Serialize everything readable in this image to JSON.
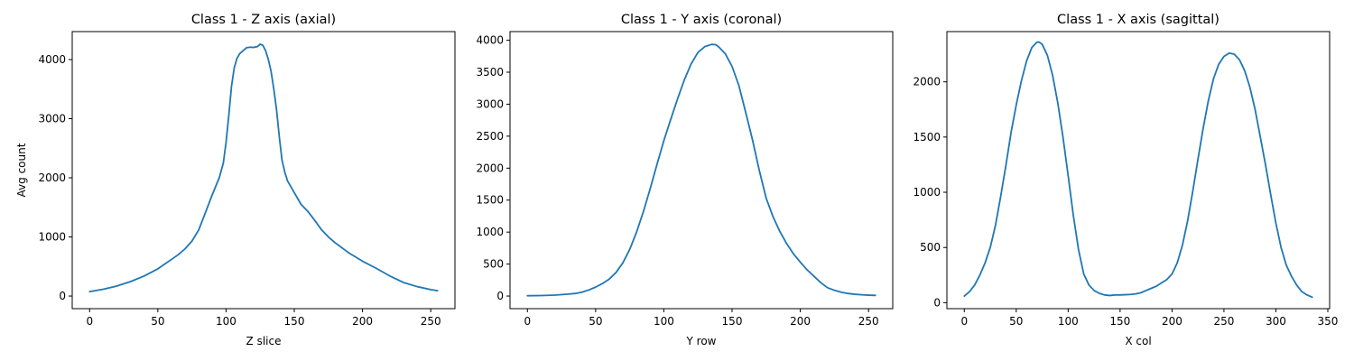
{
  "chart_data": [
    {
      "type": "line",
      "title": "Class 1 - Z axis (axial)",
      "xlabel": "Z slice",
      "ylabel": "Avg count",
      "xlim": [
        -12.75,
        267.75
      ],
      "ylim": [
        -213,
        4473
      ],
      "xticks": [
        0,
        50,
        100,
        150,
        200,
        250
      ],
      "yticks": [
        0,
        1000,
        2000,
        3000,
        4000
      ],
      "grid": false,
      "color": "#1f77b4",
      "series": [
        {
          "x": [
            0,
            10,
            20,
            30,
            40,
            50,
            55,
            60,
            65,
            70,
            75,
            80,
            85,
            90,
            95,
            98,
            100,
            102,
            104,
            106,
            108,
            110,
            112,
            115,
            118,
            120,
            123,
            125,
            127,
            129,
            131,
            133,
            135,
            137,
            139,
            141,
            143,
            145,
            150,
            155,
            160,
            165,
            170,
            175,
            180,
            190,
            200,
            210,
            220,
            230,
            240,
            250,
            255
          ],
          "y": [
            75,
            115,
            170,
            245,
            340,
            460,
            540,
            620,
            700,
            800,
            930,
            1120,
            1420,
            1720,
            2000,
            2250,
            2600,
            3050,
            3550,
            3860,
            4020,
            4100,
            4140,
            4200,
            4210,
            4205,
            4220,
            4260,
            4240,
            4150,
            4000,
            3800,
            3500,
            3150,
            2700,
            2300,
            2100,
            1950,
            1750,
            1550,
            1430,
            1280,
            1120,
            1000,
            900,
            730,
            590,
            470,
            340,
            230,
            160,
            110,
            90
          ]
        }
      ]
    },
    {
      "type": "line",
      "title": "Class 1 - Y axis (coronal)",
      "xlabel": "Y row",
      "ylabel": "",
      "xlim": [
        -12.75,
        267.75
      ],
      "ylim": [
        -197,
        4135
      ],
      "xticks": [
        0,
        50,
        100,
        150,
        200,
        250
      ],
      "yticks": [
        0,
        500,
        1000,
        1500,
        2000,
        2500,
        3000,
        3500,
        4000
      ],
      "grid": false,
      "color": "#1f77b4",
      "series": [
        {
          "x": [
            0,
            10,
            20,
            30,
            35,
            40,
            45,
            50,
            55,
            60,
            65,
            70,
            75,
            80,
            85,
            90,
            95,
            100,
            105,
            110,
            115,
            120,
            125,
            130,
            135,
            138,
            140,
            145,
            150,
            155,
            160,
            165,
            170,
            175,
            180,
            185,
            190,
            195,
            200,
            205,
            210,
            215,
            220,
            225,
            230,
            235,
            240,
            245,
            250,
            255
          ],
          "y": [
            5,
            8,
            15,
            30,
            40,
            60,
            95,
            140,
            195,
            265,
            370,
            520,
            730,
            1000,
            1320,
            1680,
            2060,
            2430,
            2760,
            3080,
            3380,
            3630,
            3810,
            3900,
            3935,
            3930,
            3900,
            3790,
            3590,
            3290,
            2870,
            2440,
            1960,
            1530,
            1240,
            1010,
            820,
            660,
            530,
            410,
            310,
            210,
            130,
            90,
            60,
            40,
            28,
            20,
            14,
            10
          ]
        }
      ]
    },
    {
      "type": "line",
      "title": "Class 1 - X axis (sagittal)",
      "xlabel": "X col",
      "ylabel": "",
      "xlim": [
        -16.75,
        351.75
      ],
      "ylim": [
        -54,
        2455
      ],
      "xticks": [
        0,
        50,
        100,
        150,
        200,
        250,
        300,
        350
      ],
      "yticks": [
        0,
        500,
        1000,
        1500,
        2000
      ],
      "grid": false,
      "color": "#1f77b4",
      "series": [
        {
          "x": [
            0,
            5,
            10,
            15,
            20,
            25,
            30,
            35,
            40,
            45,
            50,
            55,
            60,
            65,
            70,
            72,
            75,
            80,
            85,
            90,
            95,
            100,
            105,
            110,
            115,
            120,
            125,
            130,
            135,
            140,
            145,
            150,
            155,
            160,
            165,
            170,
            175,
            180,
            185,
            190,
            195,
            200,
            205,
            210,
            215,
            220,
            225,
            230,
            235,
            240,
            245,
            250,
            255,
            258,
            260,
            265,
            270,
            275,
            280,
            285,
            290,
            295,
            300,
            305,
            310,
            315,
            320,
            325,
            330,
            335
          ],
          "y": [
            60,
            100,
            160,
            250,
            360,
            500,
            700,
            960,
            1240,
            1540,
            1790,
            2010,
            2190,
            2310,
            2360,
            2360,
            2340,
            2240,
            2060,
            1810,
            1500,
            1150,
            790,
            480,
            260,
            160,
            110,
            85,
            70,
            65,
            70,
            70,
            72,
            75,
            80,
            90,
            110,
            130,
            150,
            180,
            210,
            260,
            360,
            520,
            740,
            1010,
            1300,
            1580,
            1830,
            2030,
            2160,
            2230,
            2260,
            2255,
            2250,
            2200,
            2100,
            1950,
            1750,
            1500,
            1250,
            980,
            720,
            500,
            340,
            240,
            160,
            100,
            70,
            50
          ]
        }
      ]
    }
  ]
}
